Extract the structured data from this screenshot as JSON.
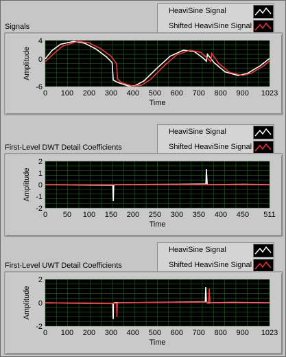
{
  "colors": {
    "plot_bg": "#000000",
    "grid": "#1c6a1c",
    "series_1": "#ffffff",
    "series_2": "#ff3030",
    "panel": "#c6c6c6"
  },
  "chart_data": [
    {
      "type": "line",
      "title": "Signals",
      "xlabel": "Time",
      "ylabel": "Amplitude",
      "xlim": [
        0,
        1023
      ],
      "ylim": [
        -6,
        4
      ],
      "x_ticks": [
        0,
        100,
        200,
        300,
        400,
        500,
        600,
        700,
        800,
        900,
        1023
      ],
      "y_ticks": [
        4,
        0,
        -6
      ],
      "grid": true,
      "legend_position": "top-right",
      "series": [
        {
          "name": "HeaviSine Signal",
          "color": "#ffffff",
          "points": [
            [
              0,
              0
            ],
            [
              30,
              1.8
            ],
            [
              70,
              3.2
            ],
            [
              130,
              3.8
            ],
            [
              180,
              3.4
            ],
            [
              230,
              2.2
            ],
            [
              280,
              0.4
            ],
            [
              305,
              -0.8
            ],
            [
              310,
              -4.6
            ],
            [
              330,
              -5.1
            ],
            [
              380,
              -5.9
            ],
            [
              410,
              -5.8
            ],
            [
              450,
              -4.8
            ],
            [
              510,
              -2.0
            ],
            [
              570,
              0.6
            ],
            [
              630,
              1.9
            ],
            [
              680,
              1.6
            ],
            [
              720,
              0.2
            ],
            [
              735,
              -0.5
            ],
            [
              740,
              1.0
            ],
            [
              770,
              -0.8
            ],
            [
              820,
              -2.8
            ],
            [
              880,
              -3.6
            ],
            [
              920,
              -3.2
            ],
            [
              980,
              -1.5
            ],
            [
              1023,
              0.1
            ]
          ]
        },
        {
          "name": "Shifted HeaviSine Signal",
          "color": "#ff3030",
          "points": [
            [
              0,
              -0.6
            ],
            [
              40,
              1.2
            ],
            [
              80,
              2.8
            ],
            [
              150,
              3.8
            ],
            [
              200,
              3.5
            ],
            [
              250,
              2.3
            ],
            [
              300,
              0.6
            ],
            [
              325,
              -1.0
            ],
            [
              330,
              -4.4
            ],
            [
              350,
              -5.2
            ],
            [
              400,
              -5.9
            ],
            [
              440,
              -5.7
            ],
            [
              480,
              -4.5
            ],
            [
              540,
              -1.6
            ],
            [
              600,
              0.9
            ],
            [
              660,
              1.9
            ],
            [
              710,
              1.4
            ],
            [
              745,
              -0.1
            ],
            [
              755,
              -0.6
            ],
            [
              760,
              1.2
            ],
            [
              790,
              -0.9
            ],
            [
              840,
              -2.9
            ],
            [
              900,
              -3.6
            ],
            [
              940,
              -3.1
            ],
            [
              1000,
              -1.4
            ],
            [
              1023,
              -0.4
            ]
          ]
        }
      ]
    },
    {
      "type": "line",
      "title": "First-Level DWT Detail Coefficients",
      "xlabel": "Time",
      "ylabel": "Amplitude",
      "xlim": [
        0,
        511
      ],
      "ylim": [
        -2,
        2
      ],
      "x_ticks": [
        0,
        50,
        100,
        150,
        200,
        250,
        300,
        350,
        400,
        450,
        511
      ],
      "y_ticks": [
        2,
        1,
        0,
        -1,
        -2
      ],
      "grid": true,
      "legend_position": "top-right",
      "series": [
        {
          "name": "HeaviSine Signal",
          "color": "#ffffff",
          "points": [
            [
              0,
              0
            ],
            [
              60,
              -0.02
            ],
            [
              120,
              -0.04
            ],
            [
              150,
              -0.05
            ],
            [
              154,
              -0.05
            ],
            [
              155,
              -1.4
            ],
            [
              156,
              -0.05
            ],
            [
              160,
              0
            ],
            [
              250,
              0.02
            ],
            [
              300,
              0.03
            ],
            [
              366,
              0.05
            ],
            [
              367,
              1.35
            ],
            [
              368,
              0.7
            ],
            [
              369,
              0.05
            ],
            [
              370,
              0
            ],
            [
              450,
              0.03
            ],
            [
              511,
              0
            ]
          ]
        },
        {
          "name": "Shifted HeaviSine Signal",
          "color": "#ff3030",
          "points": [
            [
              0,
              0
            ],
            [
              511,
              0
            ]
          ]
        }
      ]
    },
    {
      "type": "line",
      "title": "First-Level UWT Detail Coefficients",
      "xlabel": "Time",
      "ylabel": "Amplitude",
      "xlim": [
        0,
        1023
      ],
      "ylim": [
        -2,
        2
      ],
      "x_ticks": [
        0,
        100,
        200,
        300,
        400,
        500,
        600,
        700,
        800,
        900,
        1023
      ],
      "y_ticks": [
        2,
        0,
        -2
      ],
      "grid": true,
      "legend_position": "top-right",
      "series": [
        {
          "name": "HeaviSine Signal",
          "color": "#ffffff",
          "points": [
            [
              0,
              0
            ],
            [
              100,
              -0.03
            ],
            [
              200,
              -0.05
            ],
            [
              305,
              -0.06
            ],
            [
              308,
              -0.06
            ],
            [
              309,
              -1.1
            ],
            [
              310,
              -1.4
            ],
            [
              311,
              -0.06
            ],
            [
              315,
              0
            ],
            [
              500,
              0.03
            ],
            [
              600,
              0.05
            ],
            [
              730,
              0.08
            ],
            [
              732,
              1.35
            ],
            [
              733,
              0.9
            ],
            [
              735,
              0.08
            ],
            [
              740,
              0
            ],
            [
              850,
              0.03
            ],
            [
              1023,
              0
            ]
          ]
        },
        {
          "name": "Shifted HeaviSine Signal",
          "color": "#ff3030",
          "points": [
            [
              0,
              0
            ],
            [
              325,
              -0.05
            ],
            [
              327,
              -1.2
            ],
            [
              329,
              -0.05
            ],
            [
              335,
              0
            ],
            [
              745,
              0.05
            ],
            [
              748,
              1.2
            ],
            [
              751,
              0.05
            ],
            [
              760,
              0
            ],
            [
              1023,
              0
            ]
          ]
        }
      ]
    }
  ]
}
